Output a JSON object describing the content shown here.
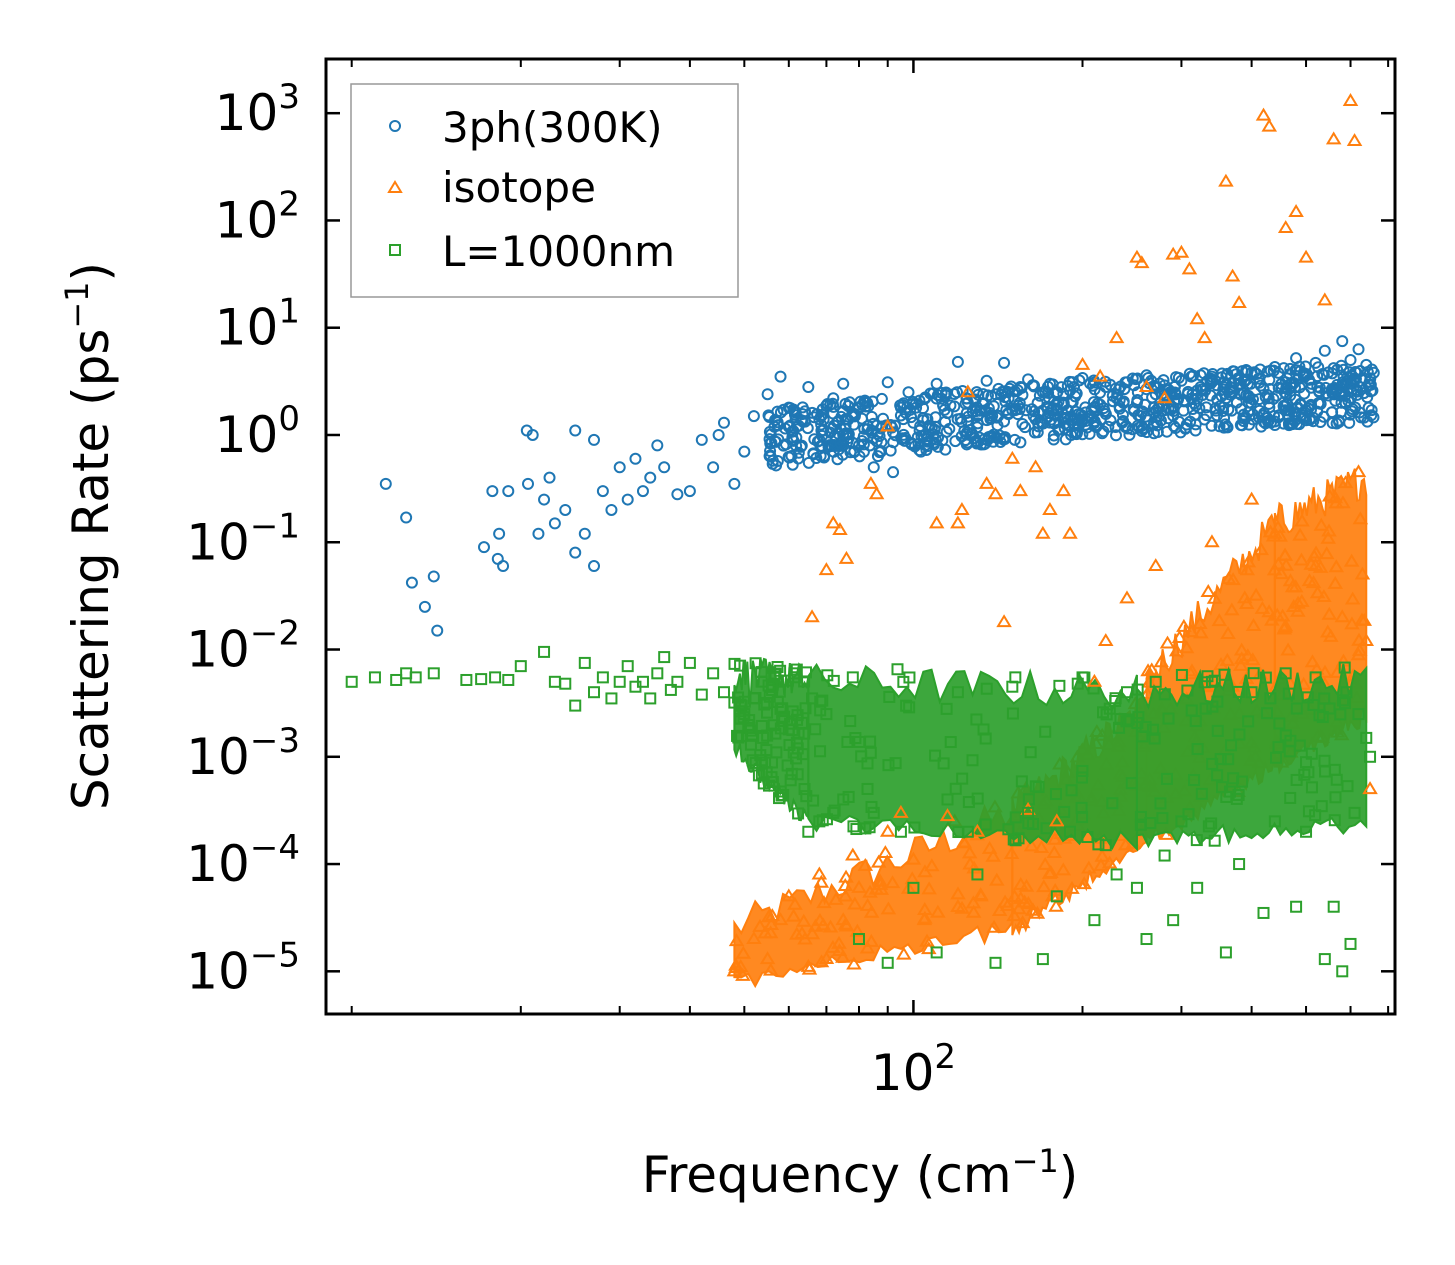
{
  "chart_data": {
    "type": "scatter",
    "xscale": "log",
    "yscale": "log",
    "xlim": [
      9,
      720
    ],
    "ylim": [
      4e-06,
      3200
    ],
    "x_major_ticks": [
      {
        "value": 100,
        "base": "10",
        "exp": "2"
      }
    ],
    "y_major_ticks": [
      {
        "value": 1e-05,
        "base": "10",
        "exp": "−5"
      },
      {
        "value": 0.0001,
        "base": "10",
        "exp": "−4"
      },
      {
        "value": 0.001,
        "base": "10",
        "exp": "−3"
      },
      {
        "value": 0.01,
        "base": "10",
        "exp": "−2"
      },
      {
        "value": 0.1,
        "base": "10",
        "exp": "−1"
      },
      {
        "value": 1,
        "base": "10",
        "exp": "0"
      },
      {
        "value": 10,
        "base": "10",
        "exp": "1"
      },
      {
        "value": 100,
        "base": "10",
        "exp": "2"
      },
      {
        "value": 1000,
        "base": "10",
        "exp": "3"
      }
    ],
    "xlabel": {
      "main": "Frequency (cm",
      "sup": "−1",
      "end": ")"
    },
    "ylabel": {
      "main": "Scattering Rate (ps",
      "sup": "−1",
      "end": ")"
    },
    "legend_position": "top-left",
    "series": [
      {
        "name": "3ph(300K)",
        "marker": "circle",
        "color": "#1f77b4",
        "points": [
          [
            11.5,
            0.35
          ],
          [
            12.5,
            0.17
          ],
          [
            12.8,
            0.042
          ],
          [
            13.5,
            0.025
          ],
          [
            14,
            0.048
          ],
          [
            14.2,
            0.015
          ],
          [
            17.2,
            0.09
          ],
          [
            17.8,
            0.3
          ],
          [
            18.2,
            0.07
          ],
          [
            18.3,
            0.12
          ],
          [
            18.6,
            0.06
          ],
          [
            19,
            0.3
          ],
          [
            20.5,
            1.1
          ],
          [
            20.6,
            0.35
          ],
          [
            21,
            1.0
          ],
          [
            21.5,
            0.12
          ],
          [
            22,
            0.25
          ],
          [
            22.5,
            0.4
          ],
          [
            23,
            0.15
          ],
          [
            24,
            0.2
          ],
          [
            25,
            0.08
          ],
          [
            25,
            1.1
          ],
          [
            26,
            0.12
          ],
          [
            27,
            0.06
          ],
          [
            27,
            0.9
          ],
          [
            28,
            0.3
          ],
          [
            29,
            0.2
          ],
          [
            30,
            0.5
          ],
          [
            31,
            0.25
          ],
          [
            32,
            0.6
          ],
          [
            33,
            0.3
          ],
          [
            34,
            0.4
          ],
          [
            35,
            0.8
          ],
          [
            36,
            0.5
          ],
          [
            38,
            0.28
          ],
          [
            40,
            0.3
          ],
          [
            42,
            0.9
          ],
          [
            44,
            0.5
          ],
          [
            45,
            1.0
          ],
          [
            46,
            1.3
          ],
          [
            48,
            0.35
          ],
          [
            50,
            0.7
          ],
          [
            52,
            1.5
          ],
          [
            55,
            2.4
          ],
          [
            58,
            3.5
          ],
          [
            60,
            1.8
          ],
          [
            62,
            1.2
          ],
          [
            65,
            2.8
          ],
          [
            68,
            1.4
          ],
          [
            70,
            0.9
          ],
          [
            72,
            2.2
          ],
          [
            75,
            3.0
          ],
          [
            78,
            1.6
          ],
          [
            80,
            0.8
          ],
          [
            82,
            2.0
          ],
          [
            85,
            0.5
          ],
          [
            88,
            1.2
          ],
          [
            90,
            3.1
          ],
          [
            92,
            0.45
          ],
          [
            95,
            1.8
          ],
          [
            98,
            2.5
          ],
          [
            100,
            1.3
          ],
          [
            105,
            2.2
          ],
          [
            110,
            3.0
          ],
          [
            115,
            1.6
          ],
          [
            120,
            4.8
          ],
          [
            125,
            2.0
          ],
          [
            130,
            1.5
          ],
          [
            135,
            3.2
          ],
          [
            140,
            2.4
          ],
          [
            145,
            4.7
          ],
          [
            150,
            1.7
          ],
          [
            155,
            2.8
          ],
          [
            160,
            3.3
          ],
          [
            165,
            1.4
          ],
          [
            170,
            2.5
          ],
          [
            175,
            3.0
          ],
          [
            180,
            1.9
          ],
          [
            190,
            2.6
          ],
          [
            200,
            3.4
          ],
          [
            210,
            1.7
          ],
          [
            220,
            2.8
          ],
          [
            230,
            2.2
          ],
          [
            240,
            3.1
          ],
          [
            250,
            2.0
          ],
          [
            260,
            3.6
          ],
          [
            270,
            2.4
          ],
          [
            280,
            2.9
          ],
          [
            290,
            1.8
          ],
          [
            300,
            3.2
          ],
          [
            320,
            2.6
          ],
          [
            340,
            3.5
          ],
          [
            360,
            2.2
          ],
          [
            380,
            3.0
          ],
          [
            400,
            3.8
          ],
          [
            420,
            2.7
          ],
          [
            440,
            4.3
          ],
          [
            460,
            3.1
          ],
          [
            480,
            5.2
          ],
          [
            500,
            3.6
          ],
          [
            520,
            4.7
          ],
          [
            540,
            6.1
          ],
          [
            560,
            4.2
          ],
          [
            580,
            7.5
          ],
          [
            600,
            5.0
          ],
          [
            615,
            3.8
          ],
          [
            620,
            6.3
          ],
          [
            640,
            4.5
          ],
          [
            660,
            3.8
          ]
        ]
      },
      {
        "name": "isotope",
        "marker": "triangle",
        "color": "#ff7f0e",
        "points": [
          [
            48,
            1e-05
          ],
          [
            52,
            2e-05
          ],
          [
            55,
            1.3e-05
          ],
          [
            58,
            3e-05
          ],
          [
            60,
            5e-05
          ],
          [
            62,
            2.2e-05
          ],
          [
            65,
            1.1e-05
          ],
          [
            66,
            0.02
          ],
          [
            68,
            8e-05
          ],
          [
            70,
            0.055
          ],
          [
            72,
            0.15
          ],
          [
            74,
            0.13
          ],
          [
            75,
            3e-05
          ],
          [
            76,
            0.07
          ],
          [
            78,
            0.00012
          ],
          [
            80,
            6e-05
          ],
          [
            84,
            0.35
          ],
          [
            86,
            0.28
          ],
          [
            90,
            1.2
          ],
          [
            90,
            0.0002
          ],
          [
            95,
            0.0003
          ],
          [
            100,
            0.00011
          ],
          [
            110,
            0.15
          ],
          [
            115,
            0.00028
          ],
          [
            120,
            0.15
          ],
          [
            122,
            0.2
          ],
          [
            125,
            2.5
          ],
          [
            130,
            0.0002
          ],
          [
            135,
            0.35
          ],
          [
            140,
            0.28
          ],
          [
            145,
            0.018
          ],
          [
            150,
            0.6
          ],
          [
            155,
            0.3
          ],
          [
            160,
            0.00032
          ],
          [
            165,
            0.5
          ],
          [
            170,
            0.12
          ],
          [
            175,
            0.2
          ],
          [
            180,
            0.00025
          ],
          [
            185,
            0.3
          ],
          [
            190,
            0.12
          ],
          [
            200,
            4.5
          ],
          [
            210,
            0.005
          ],
          [
            215,
            3.5
          ],
          [
            220,
            0.012
          ],
          [
            230,
            8
          ],
          [
            240,
            0.03
          ],
          [
            250,
            45
          ],
          [
            255,
            40
          ],
          [
            260,
            2.8
          ],
          [
            270,
            0.06
          ],
          [
            280,
            2.2
          ],
          [
            290,
            48
          ],
          [
            300,
            50
          ],
          [
            310,
            35
          ],
          [
            320,
            12
          ],
          [
            330,
            8
          ],
          [
            340,
            0.1
          ],
          [
            360,
            230
          ],
          [
            370,
            30
          ],
          [
            380,
            17
          ],
          [
            400,
            0.25
          ],
          [
            420,
            950
          ],
          [
            430,
            750
          ],
          [
            440,
            0.12
          ],
          [
            460,
            85
          ],
          [
            480,
            120
          ],
          [
            500,
            45
          ],
          [
            520,
            0.06
          ],
          [
            540,
            18
          ],
          [
            560,
            570
          ],
          [
            580,
            0.02
          ],
          [
            600,
            1300
          ],
          [
            610,
            550
          ],
          [
            620,
            0.45
          ],
          [
            630,
            0.05
          ],
          [
            640,
            0.012
          ],
          [
            650,
            0.0005
          ]
        ],
        "bands": [
          {
            "x0": 48,
            "x1": 150,
            "lo0": 1e-05,
            "hi0": 2.5e-05,
            "lo1": 3e-05,
            "hi1": 0.0003
          },
          {
            "x0": 150,
            "x1": 260,
            "lo0": 3e-05,
            "hi0": 0.0003,
            "lo1": 0.0002,
            "hi1": 0.003
          },
          {
            "x0": 260,
            "x1": 440,
            "lo0": 0.0002,
            "hi0": 0.005,
            "lo1": 0.001,
            "hi1": 0.15
          },
          {
            "x0": 440,
            "x1": 640,
            "lo0": 0.001,
            "hi0": 0.15,
            "lo1": 0.003,
            "hi1": 0.4
          }
        ]
      },
      {
        "name": "L=1000nm",
        "marker": "square",
        "color": "#2ca02c",
        "points": [
          [
            10,
            0.005
          ],
          [
            11,
            0.0055
          ],
          [
            12,
            0.0052
          ],
          [
            12.5,
            0.006
          ],
          [
            13,
            0.0055
          ],
          [
            14,
            0.006
          ],
          [
            16,
            0.0052
          ],
          [
            17,
            0.0053
          ],
          [
            18,
            0.0055
          ],
          [
            19,
            0.0052
          ],
          [
            20,
            0.007
          ],
          [
            22,
            0.0095
          ],
          [
            23,
            0.005
          ],
          [
            24,
            0.0048
          ],
          [
            25,
            0.003
          ],
          [
            26,
            0.0075
          ],
          [
            27,
            0.004
          ],
          [
            28,
            0.0055
          ],
          [
            29,
            0.0035
          ],
          [
            30,
            0.005
          ],
          [
            31,
            0.007
          ],
          [
            32,
            0.0045
          ],
          [
            33,
            0.005
          ],
          [
            34,
            0.0035
          ],
          [
            35,
            0.006
          ],
          [
            36,
            0.0085
          ],
          [
            37,
            0.0042
          ],
          [
            38,
            0.005
          ],
          [
            40,
            0.0075
          ],
          [
            42,
            0.0038
          ],
          [
            44,
            0.006
          ],
          [
            46,
            0.004
          ],
          [
            48,
            0.0032
          ],
          [
            50,
            0.0025
          ],
          [
            52,
            0.0035
          ],
          [
            54,
            0.0015
          ],
          [
            56,
            0.0045
          ],
          [
            58,
            0.0028
          ],
          [
            60,
            0.0018
          ],
          [
            62,
            0.0065
          ],
          [
            64,
            0.0005
          ],
          [
            65,
            0.0002
          ],
          [
            66,
            0.0035
          ],
          [
            68,
            0.00025
          ],
          [
            70,
            0.0025
          ],
          [
            72,
            0.0003
          ],
          [
            75,
            0.0004
          ],
          [
            78,
            0.0055
          ],
          [
            80,
            2e-05
          ],
          [
            85,
            0.0003
          ],
          [
            90,
            1.2e-05
          ],
          [
            95,
            0.0002
          ],
          [
            100,
            6e-05
          ],
          [
            110,
            1.5e-05
          ],
          [
            115,
            0.0004
          ],
          [
            120,
            0.004
          ],
          [
            125,
            0.0002
          ],
          [
            130,
            8e-05
          ],
          [
            140,
            1.2e-05
          ],
          [
            150,
            0.0045
          ],
          [
            160,
            0.0003
          ],
          [
            170,
            1.3e-05
          ],
          [
            180,
            5e-05
          ],
          [
            190,
            0.0002
          ],
          [
            200,
            0.0055
          ],
          [
            210,
            3e-05
          ],
          [
            220,
            0.00015
          ],
          [
            230,
            8e-05
          ],
          [
            240,
            0.004
          ],
          [
            250,
            6e-05
          ],
          [
            260,
            2e-05
          ],
          [
            270,
            0.005
          ],
          [
            280,
            0.00012
          ],
          [
            290,
            3e-05
          ],
          [
            300,
            0.00025
          ],
          [
            320,
            6e-05
          ],
          [
            340,
            0.005
          ],
          [
            360,
            1.5e-05
          ],
          [
            380,
            0.0001
          ],
          [
            400,
            0.004
          ],
          [
            420,
            3.5e-05
          ],
          [
            440,
            0.00025
          ],
          [
            460,
            0.006
          ],
          [
            480,
            4e-05
          ],
          [
            500,
            0.0002
          ],
          [
            520,
            0.0055
          ],
          [
            540,
            1.3e-05
          ],
          [
            560,
            4e-05
          ],
          [
            580,
            1e-05
          ],
          [
            590,
            0.004
          ],
          [
            600,
            1.8e-05
          ],
          [
            610,
            0.0003
          ],
          [
            620,
            0.0025
          ],
          [
            640,
            0.0015
          ],
          [
            650,
            0.001
          ]
        ],
        "bands": [
          {
            "x0": 48,
            "x1": 65,
            "lo0": 0.0015,
            "hi0": 0.006,
            "lo1": 0.0003,
            "hi1": 0.005
          },
          {
            "x0": 65,
            "x1": 250,
            "lo0": 0.0003,
            "hi0": 0.005,
            "lo1": 0.0002,
            "hi1": 0.004
          },
          {
            "x0": 250,
            "x1": 640,
            "lo0": 0.0002,
            "hi0": 0.004,
            "lo1": 0.0003,
            "hi1": 0.005
          }
        ]
      }
    ]
  }
}
